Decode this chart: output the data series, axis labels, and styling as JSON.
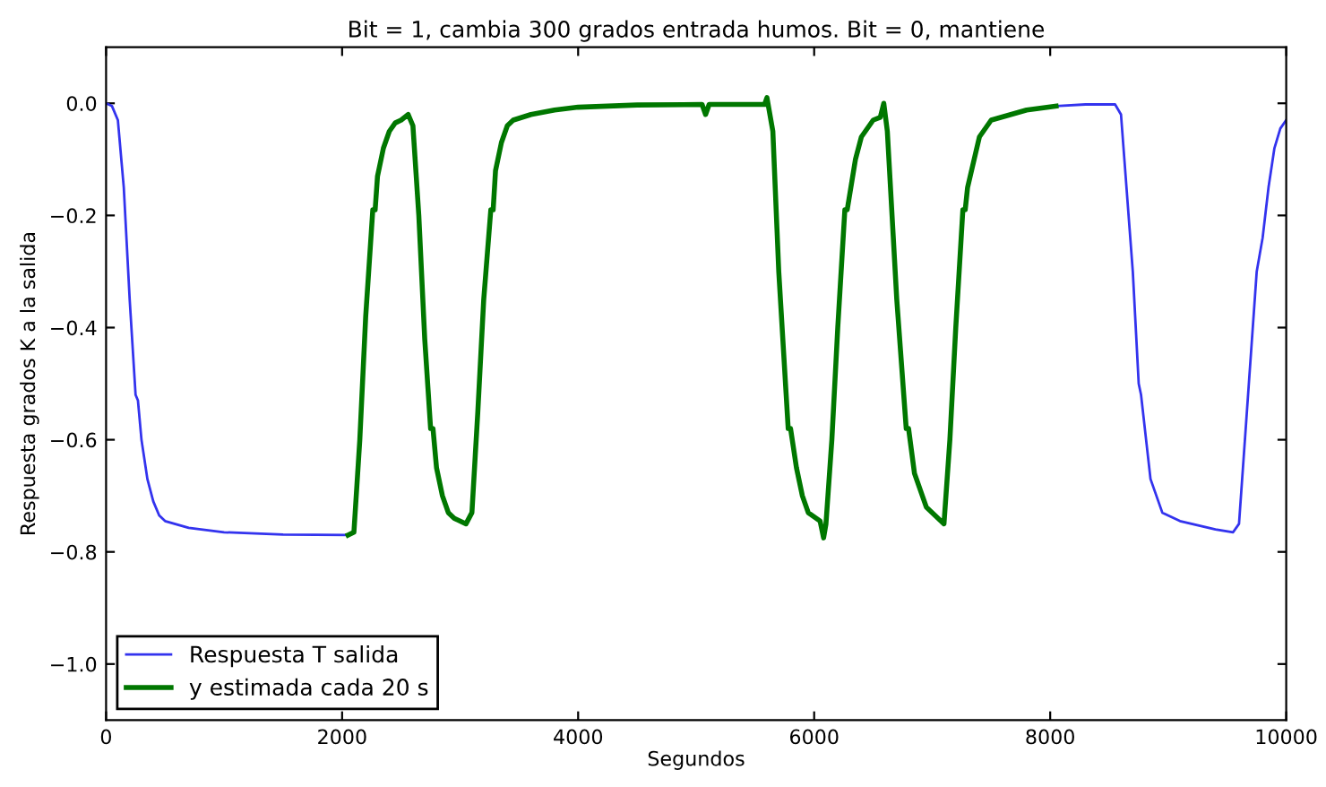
{
  "chart_data": {
    "type": "line",
    "title": "Bit = 1, cambia 300 grados entrada humos. Bit = 0, mantiene",
    "xlabel": "Segundos",
    "ylabel": "Respuesta grados K a la salida",
    "xlim": [
      0,
      10000
    ],
    "ylim": [
      -1.1,
      0.1
    ],
    "xticks": [
      0,
      2000,
      4000,
      6000,
      8000,
      10000
    ],
    "yticks": [
      {
        "value": -1.0,
        "label": "−1.0"
      },
      {
        "value": -0.8,
        "label": "−0.8"
      },
      {
        "value": -0.6,
        "label": "−0.6"
      },
      {
        "value": -0.4,
        "label": "−0.4"
      },
      {
        "value": -0.2,
        "label": "−0.2"
      },
      {
        "value": 0.0,
        "label": "0.0"
      }
    ],
    "grid": false,
    "legend": "bottom left",
    "marker": "none",
    "line_style": "solid",
    "series": [
      {
        "name": "Respuesta T salida",
        "color": "#3333ee",
        "x": [
          0,
          50,
          100,
          150,
          200,
          250,
          270,
          300,
          350,
          400,
          450,
          500,
          700,
          1000,
          1500,
          2050,
          5000,
          8050,
          8300,
          8550,
          8600,
          8700,
          8750,
          8770,
          8850,
          8950,
          9100,
          9400,
          9550,
          9600,
          9650,
          9750,
          9800,
          9850,
          9900,
          9950,
          10000
        ],
        "values": [
          0.0,
          -0.005,
          -0.03,
          -0.15,
          -0.35,
          -0.52,
          -0.53,
          -0.6,
          -0.67,
          -0.71,
          -0.735,
          -0.745,
          -0.757,
          -0.765,
          -0.769,
          -0.77,
          null,
          -0.005,
          -0.002,
          -0.002,
          -0.02,
          -0.3,
          -0.5,
          -0.52,
          -0.67,
          -0.73,
          -0.745,
          -0.76,
          -0.765,
          -0.75,
          -0.6,
          -0.3,
          -0.24,
          -0.15,
          -0.08,
          -0.045,
          -0.03
        ]
      },
      {
        "name": "y estimada cada 20 s",
        "color": "#007700",
        "x": [
          2050,
          2100,
          2150,
          2200,
          2260,
          2280,
          2300,
          2350,
          2400,
          2450,
          2500,
          2560,
          2600,
          2650,
          2700,
          2750,
          2770,
          2800,
          2850,
          2900,
          2950,
          3050,
          3100,
          3150,
          3200,
          3260,
          3280,
          3300,
          3350,
          3400,
          3450,
          3600,
          3800,
          4000,
          4500,
          5050,
          5080,
          5110,
          5580,
          5600,
          5650,
          5700,
          5780,
          5800,
          5850,
          5900,
          5950,
          6050,
          6080,
          6100,
          6150,
          6200,
          6260,
          6280,
          6350,
          6400,
          6500,
          6560,
          6590,
          6620,
          6700,
          6780,
          6800,
          6850,
          6950,
          7050,
          7100,
          7150,
          7200,
          7260,
          7280,
          7300,
          7400,
          7500,
          7800,
          8050
        ],
        "values": [
          -0.77,
          -0.765,
          -0.6,
          -0.38,
          -0.19,
          -0.19,
          -0.13,
          -0.08,
          -0.05,
          -0.035,
          -0.03,
          -0.02,
          -0.04,
          -0.2,
          -0.42,
          -0.58,
          -0.58,
          -0.65,
          -0.7,
          -0.73,
          -0.74,
          -0.75,
          -0.73,
          -0.55,
          -0.35,
          -0.19,
          -0.19,
          -0.12,
          -0.07,
          -0.04,
          -0.03,
          -0.02,
          -0.012,
          -0.007,
          -0.003,
          -0.002,
          -0.02,
          -0.002,
          -0.002,
          0.01,
          -0.05,
          -0.3,
          -0.58,
          -0.58,
          -0.65,
          -0.7,
          -0.73,
          -0.745,
          -0.775,
          -0.75,
          -0.6,
          -0.4,
          -0.19,
          -0.19,
          -0.1,
          -0.06,
          -0.03,
          -0.025,
          0.0,
          -0.05,
          -0.35,
          -0.58,
          -0.58,
          -0.66,
          -0.72,
          -0.74,
          -0.75,
          -0.6,
          -0.4,
          -0.19,
          -0.19,
          -0.15,
          -0.06,
          -0.03,
          -0.012,
          -0.005
        ]
      }
    ]
  }
}
